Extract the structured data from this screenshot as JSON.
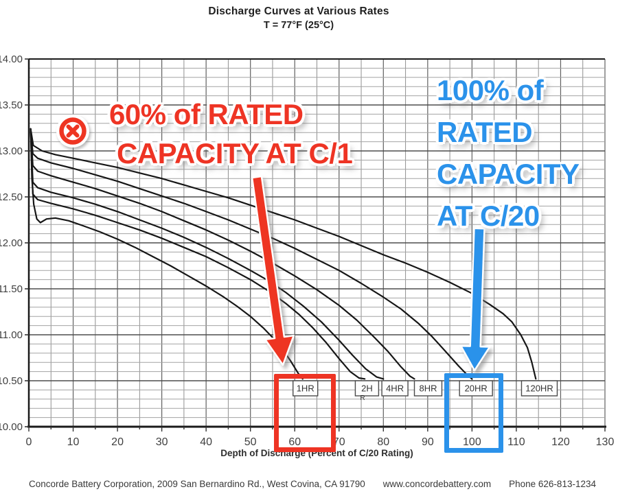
{
  "chart_data": {
    "type": "line",
    "title": "Discharge Curves at Various Rates",
    "subtitle": "T = 77°F (25°C)",
    "xlabel": "Depth of Discharge (Percent of C/20 Rating)",
    "ylabel": "",
    "xlim": [
      0,
      130
    ],
    "ylim": [
      10.0,
      14.0
    ],
    "x_tick_step": 10,
    "x_grid_minor": 5,
    "y_tick_step": 0.5,
    "y_grid_minor": 0.1,
    "grid": true,
    "legend_position": "boxed labels inside plot at 10.5V",
    "x_ticks": [
      "0",
      "10",
      "20",
      "30",
      "40",
      "50",
      "60",
      "70",
      "80",
      "90",
      "100",
      "110",
      "120",
      "130"
    ],
    "y_ticks": [
      "14.00",
      "13.50",
      "13.00",
      "12.50",
      "12.00",
      "11.50",
      "11.00",
      "10.50",
      "10.00"
    ],
    "series": [
      {
        "name": "1HR",
        "points": [
          [
            0.4,
            13.24
          ],
          [
            0.7,
            12.7
          ],
          [
            1.1,
            12.42
          ],
          [
            1.8,
            12.26
          ],
          [
            2.6,
            12.22
          ],
          [
            4,
            12.26
          ],
          [
            6,
            12.27
          ],
          [
            9,
            12.24
          ],
          [
            12,
            12.19
          ],
          [
            16,
            12.12
          ],
          [
            20,
            12.04
          ],
          [
            24,
            11.95
          ],
          [
            28,
            11.85
          ],
          [
            32,
            11.75
          ],
          [
            36,
            11.64
          ],
          [
            40,
            11.53
          ],
          [
            44,
            11.41
          ],
          [
            47,
            11.31
          ],
          [
            50,
            11.2
          ],
          [
            53,
            11.07
          ],
          [
            55,
            10.97
          ],
          [
            57,
            10.86
          ],
          [
            59,
            10.72
          ],
          [
            60.8,
            10.58
          ],
          [
            61.8,
            10.52
          ]
        ]
      },
      {
        "name": "2H",
        "points": [
          [
            0.4,
            13.24
          ],
          [
            0.9,
            12.53
          ],
          [
            2,
            12.47
          ],
          [
            5,
            12.43
          ],
          [
            10,
            12.37
          ],
          [
            15,
            12.3
          ],
          [
            20,
            12.22
          ],
          [
            25,
            12.14
          ],
          [
            30,
            12.05
          ],
          [
            35,
            11.95
          ],
          [
            40,
            11.85
          ],
          [
            45,
            11.73
          ],
          [
            50,
            11.6
          ],
          [
            54,
            11.48
          ],
          [
            58,
            11.34
          ],
          [
            61,
            11.22
          ],
          [
            64,
            11.08
          ],
          [
            67,
            10.92
          ],
          [
            70,
            10.74
          ],
          [
            72.5,
            10.6
          ],
          [
            74.5,
            10.53
          ],
          [
            75.8,
            10.52
          ]
        ]
      },
      {
        "name": "4HR",
        "points": [
          [
            0.4,
            13.24
          ],
          [
            0.9,
            12.66
          ],
          [
            2,
            12.6
          ],
          [
            5,
            12.55
          ],
          [
            10,
            12.49
          ],
          [
            15,
            12.42
          ],
          [
            20,
            12.34
          ],
          [
            25,
            12.25
          ],
          [
            30,
            12.16
          ],
          [
            35,
            12.06
          ],
          [
            40,
            11.95
          ],
          [
            45,
            11.83
          ],
          [
            50,
            11.7
          ],
          [
            54,
            11.59
          ],
          [
            58,
            11.46
          ],
          [
            62,
            11.31
          ],
          [
            66,
            11.14
          ],
          [
            70,
            10.94
          ],
          [
            73,
            10.78
          ],
          [
            76,
            10.63
          ],
          [
            78.5,
            10.54
          ],
          [
            80,
            10.52
          ]
        ]
      },
      {
        "name": "8HR",
        "points": [
          [
            0.4,
            13.24
          ],
          [
            0.9,
            12.84
          ],
          [
            2,
            12.78
          ],
          [
            5,
            12.73
          ],
          [
            10,
            12.66
          ],
          [
            15,
            12.59
          ],
          [
            20,
            12.51
          ],
          [
            25,
            12.43
          ],
          [
            30,
            12.34
          ],
          [
            35,
            12.24
          ],
          [
            40,
            12.14
          ],
          [
            45,
            12.03
          ],
          [
            50,
            11.91
          ],
          [
            55,
            11.78
          ],
          [
            60,
            11.64
          ],
          [
            65,
            11.49
          ],
          [
            70,
            11.32
          ],
          [
            74,
            11.16
          ],
          [
            78,
            10.97
          ],
          [
            81,
            10.82
          ],
          [
            84,
            10.65
          ],
          [
            86,
            10.55
          ],
          [
            87,
            10.52
          ]
        ]
      },
      {
        "name": "20HR",
        "points": [
          [
            0.4,
            13.24
          ],
          [
            0.9,
            12.97
          ],
          [
            2,
            12.92
          ],
          [
            5,
            12.87
          ],
          [
            10,
            12.81
          ],
          [
            15,
            12.74
          ],
          [
            20,
            12.67
          ],
          [
            25,
            12.59
          ],
          [
            30,
            12.51
          ],
          [
            35,
            12.43
          ],
          [
            40,
            12.34
          ],
          [
            45,
            12.25
          ],
          [
            50,
            12.15
          ],
          [
            55,
            12.05
          ],
          [
            60,
            11.94
          ],
          [
            65,
            11.82
          ],
          [
            70,
            11.7
          ],
          [
            75,
            11.56
          ],
          [
            80,
            11.41
          ],
          [
            84,
            11.28
          ],
          [
            88,
            11.12
          ],
          [
            91,
            10.98
          ],
          [
            94,
            10.82
          ],
          [
            97,
            10.66
          ],
          [
            99,
            10.56
          ],
          [
            100,
            10.52
          ]
        ]
      },
      {
        "name": "120HR",
        "points": [
          [
            0.4,
            13.24
          ],
          [
            1,
            13.06
          ],
          [
            3,
            13.0
          ],
          [
            6,
            12.96
          ],
          [
            10,
            12.92
          ],
          [
            15,
            12.87
          ],
          [
            20,
            12.82
          ],
          [
            25,
            12.76
          ],
          [
            30,
            12.7
          ],
          [
            35,
            12.63
          ],
          [
            40,
            12.56
          ],
          [
            45,
            12.49
          ],
          [
            50,
            12.41
          ],
          [
            55,
            12.33
          ],
          [
            60,
            12.25
          ],
          [
            65,
            12.16
          ],
          [
            70,
            12.07
          ],
          [
            75,
            11.97
          ],
          [
            80,
            11.87
          ],
          [
            85,
            11.78
          ],
          [
            90,
            11.68
          ],
          [
            95,
            11.57
          ],
          [
            100,
            11.45
          ],
          [
            104,
            11.33
          ],
          [
            107,
            11.23
          ],
          [
            109,
            11.14
          ],
          [
            111,
            11.0
          ],
          [
            112.5,
            10.86
          ],
          [
            113.5,
            10.7
          ],
          [
            114.4,
            10.52
          ]
        ]
      }
    ],
    "series_labels": [
      {
        "text": "1HR",
        "x": 62.4,
        "w": 36
      },
      {
        "text": "2H",
        "sub": "R",
        "x": 76.3,
        "w": 34
      },
      {
        "text": "4HR",
        "x": 82.6,
        "w": 38
      },
      {
        "text": "8HR",
        "x": 90.1,
        "w": 40
      },
      {
        "text": "20HR",
        "x": 100.9,
        "w": 48
      },
      {
        "text": "120HR",
        "x": 115.2,
        "w": 52
      }
    ]
  },
  "annotations": {
    "red_note": {
      "lines": [
        "60% of RATED",
        "CAPACITY AT C/1"
      ],
      "color": "#ee3424",
      "target_label": "1HR"
    },
    "blue_note": {
      "lines": [
        "100% of",
        "RATED",
        "CAPACITY",
        "AT C/20"
      ],
      "color": "#2b92ea",
      "target_label": "20HR"
    }
  },
  "footer": {
    "parts": [
      "Concorde Battery Corporation, 2009 San Bernardino Rd., West Covina, CA 91790",
      "www.concordebattery.com",
      "Phone 626-813-1234"
    ]
  },
  "colors": {
    "red": "#ee3424",
    "blue": "#2b92ea",
    "curve": "#161616",
    "grid_minor": "#a3a3a3",
    "grid_major": "#4d4d4d",
    "grid_vert_minor": "#8f8f8f",
    "grid_vert_major": "#5f5f5f",
    "axis": "#1a1a1a",
    "tick_text": "#3f3f3f",
    "box_stroke": "#4a4a4a"
  }
}
